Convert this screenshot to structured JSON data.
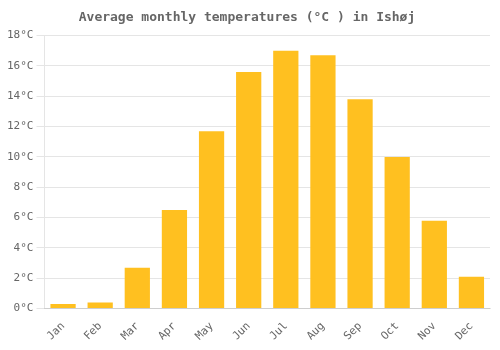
{
  "chart_data": {
    "type": "bar",
    "title": "Average monthly temperatures (°C ) in Ishøj",
    "categories": [
      "Jan",
      "Feb",
      "Mar",
      "Apr",
      "May",
      "Jun",
      "Jul",
      "Aug",
      "Sep",
      "Oct",
      "Nov",
      "Dec"
    ],
    "values": [
      0.3,
      0.4,
      2.7,
      6.5,
      11.7,
      15.6,
      17.0,
      16.7,
      13.8,
      10.0,
      5.8,
      2.1
    ],
    "color": "#FFC020",
    "ylim": [
      0,
      18
    ],
    "yticks": [
      {
        "value": 0,
        "label": "0°C"
      },
      {
        "value": 2,
        "label": "2°C"
      },
      {
        "value": 4,
        "label": "4°C"
      },
      {
        "value": 6,
        "label": "6°C"
      },
      {
        "value": 8,
        "label": "8°C"
      },
      {
        "value": 10,
        "label": "10°C"
      },
      {
        "value": 12,
        "label": "12°C"
      },
      {
        "value": 14,
        "label": "14°C"
      },
      {
        "value": 16,
        "label": "16°C"
      },
      {
        "value": 18,
        "label": "18°C"
      }
    ],
    "grid": true
  }
}
